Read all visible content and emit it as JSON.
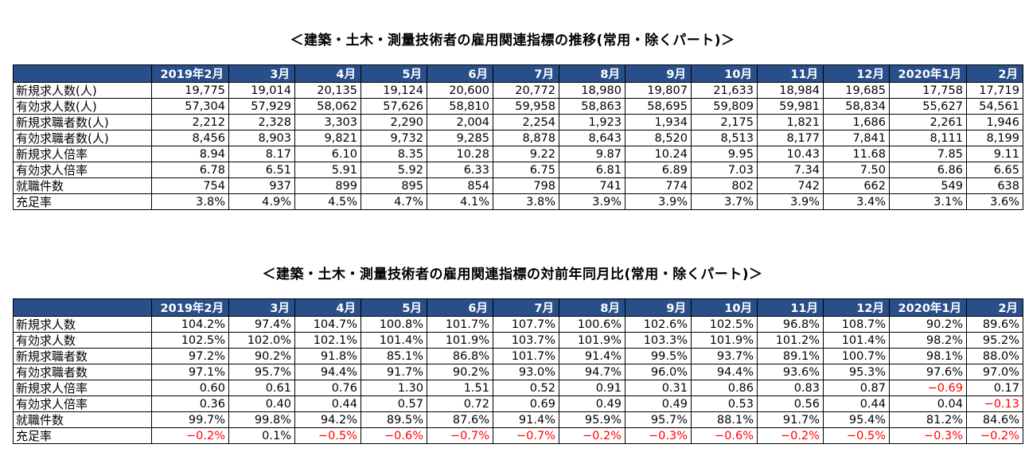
{
  "title1": "＜建築・土木・測量技術者の雇用関連指標の推移(常用・除くパート)＞",
  "title2": "＜建築・土木・測量技術者の雇用関連指標の対前年同月比(常用・除くパート)＞",
  "neg_color": "#ff0000",
  "header_color": "#284f8a",
  "columns": [
    "2019年2月",
    "3月",
    "4月",
    "5月",
    "6月",
    "7月",
    "8月",
    "9月",
    "10月",
    "11月",
    "12月",
    "2020年1月",
    "2月"
  ],
  "table1": {
    "rows": [
      {
        "label": "新規求人数(人)",
        "values": [
          "19,775",
          "19,014",
          "20,135",
          "19,124",
          "20,600",
          "20,772",
          "18,980",
          "19,807",
          "21,633",
          "18,984",
          "19,685",
          "17,758",
          "17,719"
        ]
      },
      {
        "label": "有効求人数(人)",
        "values": [
          "57,304",
          "57,929",
          "58,062",
          "57,626",
          "58,810",
          "59,958",
          "58,863",
          "58,695",
          "59,809",
          "59,981",
          "58,834",
          "55,627",
          "54,561"
        ]
      },
      {
        "label": "新規求職者数(人)",
        "values": [
          "2,212",
          "2,328",
          "3,303",
          "2,290",
          "2,004",
          "2,254",
          "1,923",
          "1,934",
          "2,175",
          "1,821",
          "1,686",
          "2,261",
          "1,946"
        ]
      },
      {
        "label": "有効求職者数(人)",
        "values": [
          "8,456",
          "8,903",
          "9,821",
          "9,732",
          "9,285",
          "8,878",
          "8,643",
          "8,520",
          "8,513",
          "8,177",
          "7,841",
          "8,111",
          "8,199"
        ]
      },
      {
        "label": "新規求人倍率",
        "values": [
          "8.94",
          "8.17",
          "6.10",
          "8.35",
          "10.28",
          "9.22",
          "9.87",
          "10.24",
          "9.95",
          "10.43",
          "11.68",
          "7.85",
          "9.11"
        ]
      },
      {
        "label": "有効求人倍率",
        "values": [
          "6.78",
          "6.51",
          "5.91",
          "5.92",
          "6.33",
          "6.75",
          "6.81",
          "6.89",
          "7.03",
          "7.34",
          "7.50",
          "6.86",
          "6.65"
        ]
      },
      {
        "label": "就職件数",
        "values": [
          "754",
          "937",
          "899",
          "895",
          "854",
          "798",
          "741",
          "774",
          "802",
          "742",
          "662",
          "549",
          "638"
        ]
      },
      {
        "label": "充足率",
        "values": [
          "3.8%",
          "4.9%",
          "4.5%",
          "4.7%",
          "4.1%",
          "3.8%",
          "3.9%",
          "3.9%",
          "3.7%",
          "3.9%",
          "3.4%",
          "3.1%",
          "3.6%"
        ]
      }
    ]
  },
  "table2": {
    "rows": [
      {
        "label": "新規求人数",
        "values": [
          "104.2%",
          "97.4%",
          "104.7%",
          "100.8%",
          "101.7%",
          "107.7%",
          "100.6%",
          "102.6%",
          "102.5%",
          "96.8%",
          "108.7%",
          "90.2%",
          "89.6%"
        ]
      },
      {
        "label": "有効求人数",
        "values": [
          "102.5%",
          "102.0%",
          "102.1%",
          "101.4%",
          "101.9%",
          "103.7%",
          "101.9%",
          "103.3%",
          "101.9%",
          "101.2%",
          "101.4%",
          "98.2%",
          "95.2%"
        ]
      },
      {
        "label": "新規求職者数",
        "values": [
          "97.2%",
          "90.2%",
          "91.8%",
          "85.1%",
          "86.8%",
          "101.7%",
          "91.4%",
          "99.5%",
          "93.7%",
          "89.1%",
          "100.7%",
          "98.1%",
          "88.0%"
        ]
      },
      {
        "label": "有効求職者数",
        "values": [
          "97.1%",
          "95.7%",
          "94.4%",
          "91.7%",
          "90.2%",
          "93.0%",
          "94.7%",
          "96.0%",
          "94.4%",
          "93.6%",
          "95.3%",
          "97.6%",
          "97.0%"
        ]
      },
      {
        "label": "新規求人倍率",
        "values": [
          "0.60",
          "0.61",
          "0.76",
          "1.30",
          "1.51",
          "0.52",
          "0.91",
          "0.31",
          "0.86",
          "0.83",
          "0.87",
          "−0.69",
          "0.17"
        ]
      },
      {
        "label": "有効求人倍率",
        "values": [
          "0.36",
          "0.40",
          "0.44",
          "0.57",
          "0.72",
          "0.69",
          "0.49",
          "0.49",
          "0.53",
          "0.56",
          "0.44",
          "0.04",
          "−0.13"
        ]
      },
      {
        "label": "就職件数",
        "values": [
          "99.7%",
          "99.8%",
          "94.2%",
          "89.5%",
          "87.6%",
          "91.4%",
          "95.9%",
          "95.7%",
          "88.1%",
          "91.7%",
          "95.4%",
          "81.2%",
          "84.6%"
        ]
      },
      {
        "label": "充足率",
        "values": [
          "−0.2%",
          "0.1%",
          "−0.5%",
          "−0.6%",
          "−0.7%",
          "−0.7%",
          "−0.2%",
          "−0.3%",
          "−0.6%",
          "−0.2%",
          "−0.5%",
          "−0.3%",
          "−0.2%"
        ]
      }
    ]
  }
}
